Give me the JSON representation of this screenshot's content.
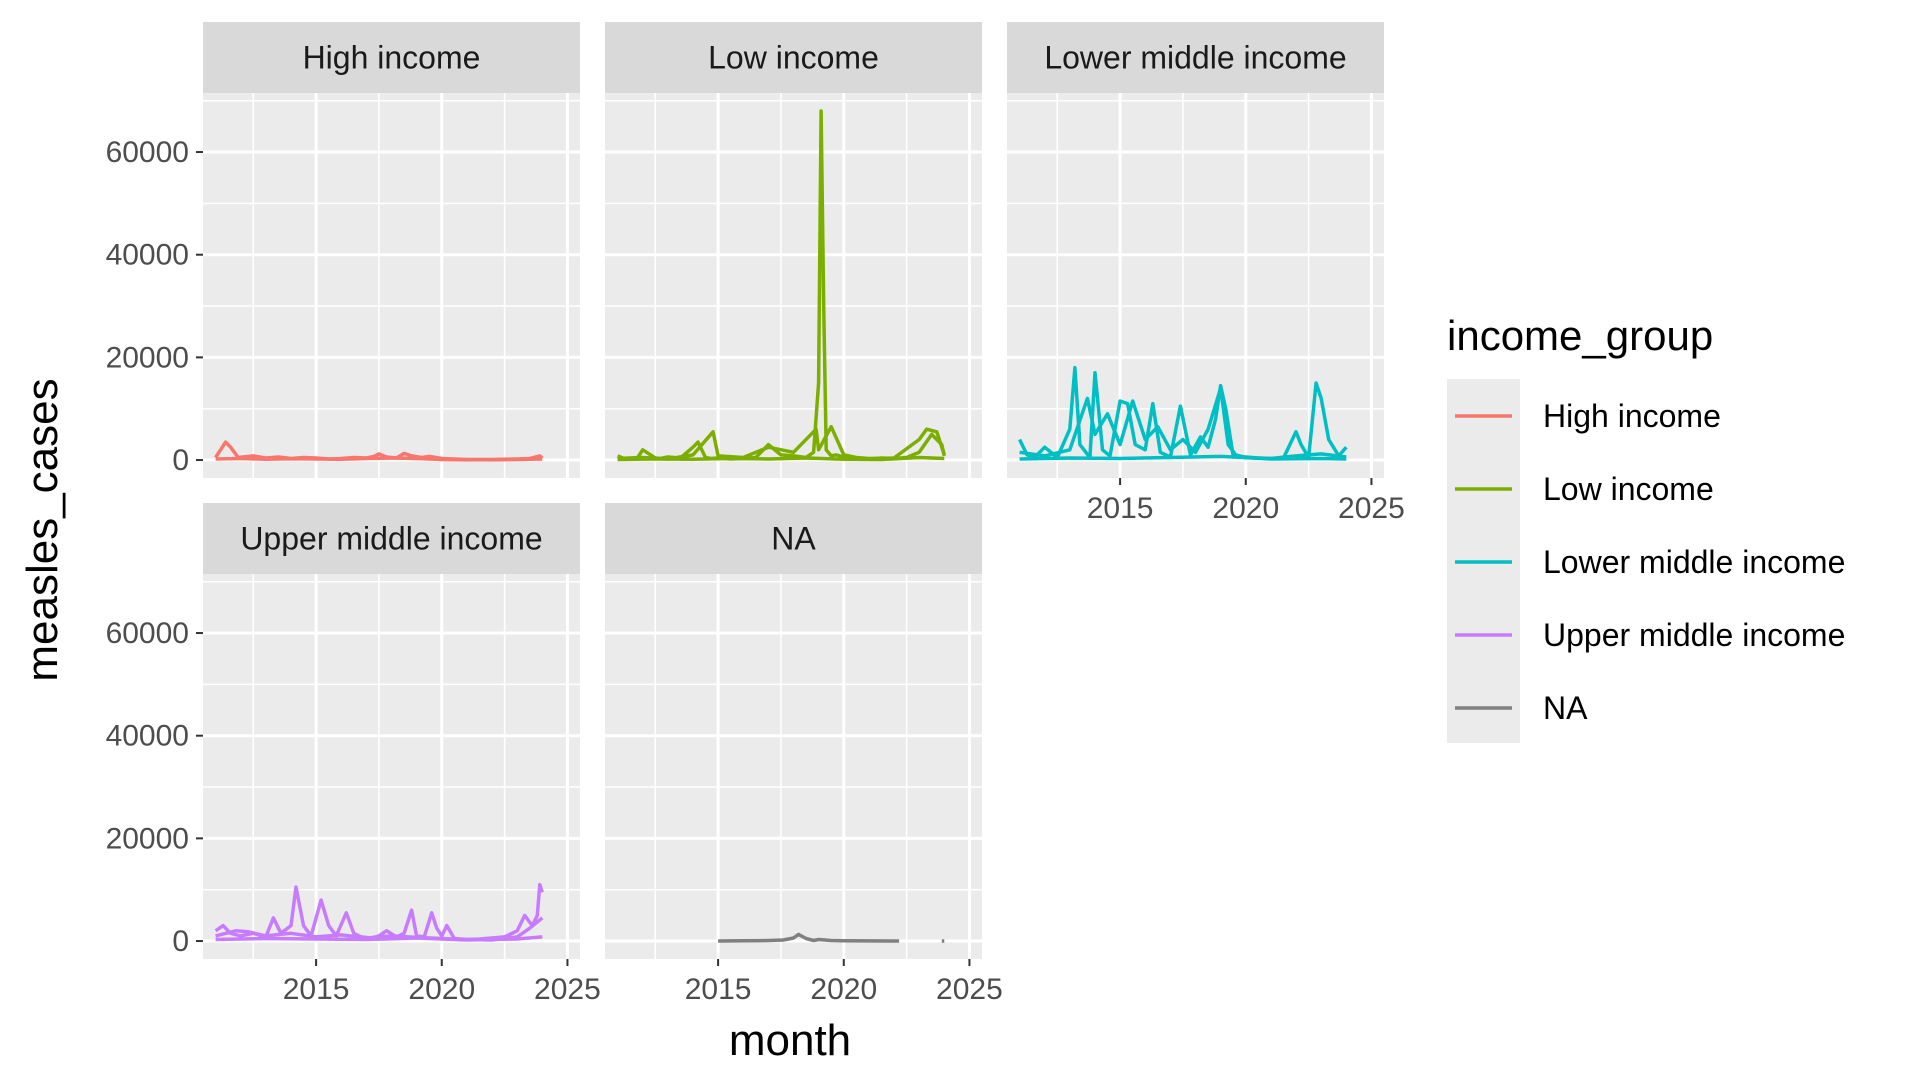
{
  "chart_data": {
    "type": "line",
    "xlabel": "month",
    "ylabel": "measles_cases",
    "xlim": [
      2010.5,
      2025.5
    ],
    "ylim": [
      -3500,
      71500
    ],
    "x_ticks": [
      2015,
      2020,
      2025
    ],
    "y_ticks": [
      0,
      20000,
      40000,
      60000
    ],
    "grid": true,
    "legend": {
      "title": "income_group",
      "placement": "right",
      "entries": [
        {
          "label": "High income",
          "color": "#F8766D"
        },
        {
          "label": "Low income",
          "color": "#7CAE00"
        },
        {
          "label": "Lower middle income",
          "color": "#00BFC4"
        },
        {
          "label": "Upper middle income",
          "color": "#C77CFF"
        },
        {
          "label": "NA",
          "color": "#808080"
        }
      ]
    },
    "panels": [
      {
        "name": "High income",
        "color": "#F8766D",
        "series": [
          {
            "x": [
              2011.0,
              2011.2,
              2011.4,
              2011.6,
              2011.9,
              2012.5,
              2013.0,
              2013.5,
              2014.0,
              2014.5,
              2015.0,
              2015.5,
              2016.0,
              2016.5,
              2017.0,
              2017.3,
              2017.5,
              2017.8,
              2018.2,
              2018.5,
              2018.8,
              2019.2,
              2019.5,
              2020.0,
              2020.5,
              2021.0,
              2022.0,
              2023.0,
              2023.5,
              2023.9,
              2024.0
            ],
            "y": [
              500,
              2000,
              3500,
              2500,
              500,
              800,
              400,
              600,
              300,
              500,
              400,
              200,
              300,
              500,
              400,
              700,
              1200,
              600,
              400,
              1300,
              800,
              500,
              700,
              300,
              200,
              100,
              100,
              200,
              300,
              800,
              400
            ]
          },
          {
            "x": [
              2011.0,
              2012.0,
              2013.0,
              2014.0,
              2015.0,
              2016.0,
              2017.0,
              2018.0,
              2019.0,
              2020.0,
              2021.0,
              2022.0,
              2023.0,
              2024.0
            ],
            "y": [
              200,
              300,
              150,
              250,
              200,
              150,
              300,
              400,
              300,
              100,
              50,
              50,
              100,
              200
            ]
          }
        ]
      },
      {
        "name": "Low income",
        "color": "#7CAE00",
        "series": [
          {
            "x": [
              2011.0,
              2011.3,
              2011.5,
              2011.8,
              2012.0,
              2012.5,
              2012.7,
              2013.0,
              2013.5,
              2014.0,
              2014.2,
              2014.5,
              2014.7,
              2015.0,
              2015.5,
              2016.0,
              2016.5,
              2017.0,
              2017.5,
              2018.0,
              2018.5,
              2018.8,
              2019.0,
              2019.1,
              2019.2,
              2019.3,
              2019.5,
              2019.7,
              2020.0,
              2020.5,
              2021.0,
              2021.5,
              2022.0,
              2022.5,
              2023.0,
              2023.5,
              2023.9,
              2024.0
            ],
            "y": [
              800,
              200,
              300,
              500,
              2000,
              400,
              300,
              600,
              400,
              2500,
              3500,
              500,
              300,
              400,
              200,
              300,
              500,
              3000,
              1000,
              800,
              500,
              1500,
              15000,
              68000,
              30000,
              2000,
              800,
              1000,
              600,
              300,
              200,
              400,
              300,
              500,
              1500,
              5000,
              3000,
              800
            ]
          },
          {
            "x": [
              2011.0,
              2012.0,
              2013.0,
              2014.0,
              2014.8,
              2015.0,
              2016.0,
              2017.0,
              2018.0,
              2018.9,
              2019.0,
              2019.5,
              2020.0,
              2020.5,
              2021.0,
              2022.0,
              2023.0,
              2023.3,
              2023.7,
              2024.0
            ],
            "y": [
              300,
              500,
              200,
              1000,
              5500,
              800,
              500,
              2500,
              1500,
              6000,
              2000,
              6500,
              1000,
              500,
              300,
              400,
              4000,
              6000,
              5500,
              1000
            ]
          },
          {
            "x": [
              2011.0,
              2012.5,
              2014.0,
              2015.5,
              2017.0,
              2018.5,
              2020.0,
              2021.5,
              2023.0,
              2024.0
            ],
            "y": [
              100,
              200,
              150,
              300,
              200,
              400,
              150,
              100,
              500,
              300
            ]
          }
        ]
      },
      {
        "name": "Lower middle income",
        "color": "#00BFC4",
        "series": [
          {
            "x": [
              2011.0,
              2011.3,
              2011.6,
              2012.0,
              2012.5,
              2013.0,
              2013.2,
              2013.4,
              2013.8,
              2014.0,
              2014.3,
              2014.6,
              2015.0,
              2015.3,
              2015.6,
              2016.0,
              2016.3,
              2016.6,
              2017.0,
              2017.4,
              2017.8,
              2018.2,
              2018.5,
              2018.8,
              2019.0,
              2019.2,
              2019.5,
              2020.0,
              2020.5,
              2021.0,
              2021.5,
              2022.0,
              2022.2,
              2022.5,
              2022.8,
              2023.0,
              2023.3,
              2023.7,
              2024.0
            ],
            "y": [
              4000,
              1000,
              500,
              2500,
              500,
              6000,
              18000,
              3000,
              500,
              17000,
              2000,
              800,
              11500,
              11000,
              3000,
              2000,
              11000,
              1500,
              600,
              10500,
              1000,
              4500,
              2500,
              8000,
              14500,
              10000,
              800,
              600,
              400,
              300,
              400,
              5500,
              3000,
              500,
              15000,
              12000,
              4000,
              800,
              2500
            ]
          },
          {
            "x": [
              2011.0,
              2012.0,
              2013.0,
              2013.7,
              2014.0,
              2014.5,
              2015.0,
              2015.5,
              2016.0,
              2016.5,
              2017.0,
              2017.5,
              2018.0,
              2018.5,
              2019.0,
              2019.3,
              2019.6,
              2020.0,
              2021.0,
              2022.0,
              2023.0,
              2024.0
            ],
            "y": [
              1500,
              800,
              2000,
              12000,
              5000,
              9000,
              3000,
              11500,
              4000,
              6500,
              2000,
              4000,
              1500,
              6000,
              14000,
              3000,
              1000,
              500,
              300,
              800,
              1200,
              600
            ]
          },
          {
            "x": [
              2011.0,
              2013.0,
              2015.0,
              2017.0,
              2019.0,
              2021.0,
              2023.0,
              2024.0
            ],
            "y": [
              200,
              400,
              300,
              500,
              700,
              200,
              300,
              200
            ]
          }
        ]
      },
      {
        "name": "Upper middle income",
        "color": "#C77CFF",
        "series": [
          {
            "x": [
              2011.0,
              2011.3,
              2011.6,
              2012.0,
              2012.5,
              2013.0,
              2013.3,
              2013.6,
              2014.0,
              2014.2,
              2014.5,
              2014.8,
              2015.2,
              2015.5,
              2015.8,
              2016.2,
              2016.5,
              2016.8,
              2017.2,
              2017.5,
              2017.8,
              2018.2,
              2018.5,
              2018.8,
              2019.0,
              2019.3,
              2019.6,
              2019.8,
              2020.0,
              2020.2,
              2020.5,
              2021.0,
              2021.5,
              2022.0,
              2022.5,
              2023.0,
              2023.3,
              2023.6,
              2023.8,
              2023.9,
              2024.0
            ],
            "y": [
              2000,
              3000,
              1500,
              1000,
              1500,
              800,
              4500,
              1500,
              3000,
              10500,
              3000,
              1000,
              8000,
              3000,
              1000,
              5500,
              1500,
              800,
              600,
              1000,
              2000,
              800,
              1500,
              6000,
              1000,
              800,
              5500,
              2500,
              1000,
              3000,
              500,
              300,
              400,
              600,
              800,
              2000,
              5000,
              3000,
              5000,
              11000,
              9500
            ]
          },
          {
            "x": [
              2011.0,
              2011.8,
              2012.3,
              2013.0,
              2014.0,
              2015.0,
              2016.0,
              2017.0,
              2018.0,
              2019.0,
              2020.0,
              2021.0,
              2022.0,
              2023.0,
              2023.5,
              2024.0
            ],
            "y": [
              1000,
              2000,
              1800,
              1000,
              1500,
              800,
              1200,
              600,
              1000,
              700,
              500,
              300,
              200,
              800,
              2500,
              4500
            ]
          },
          {
            "x": [
              2011.0,
              2013.0,
              2015.0,
              2017.0,
              2019.0,
              2021.0,
              2023.0,
              2024.0
            ],
            "y": [
              300,
              500,
              400,
              300,
              600,
              200,
              400,
              800
            ]
          }
        ]
      },
      {
        "name": "NA",
        "color": "#808080",
        "series": [
          {
            "x": [
              2015.0,
              2016.0,
              2017.0,
              2017.6,
              2018.0,
              2018.2,
              2018.5,
              2018.8,
              2019.0,
              2019.5,
              2020.0,
              2021.0,
              2022.0,
              2022.2
            ],
            "y": [
              0,
              50,
              100,
              200,
              600,
              1300,
              500,
              100,
              300,
              100,
              50,
              20,
              10,
              0
            ]
          },
          {
            "x": [
              2023.9,
              2024.0
            ],
            "y": [
              0,
              0
            ]
          }
        ]
      }
    ]
  }
}
